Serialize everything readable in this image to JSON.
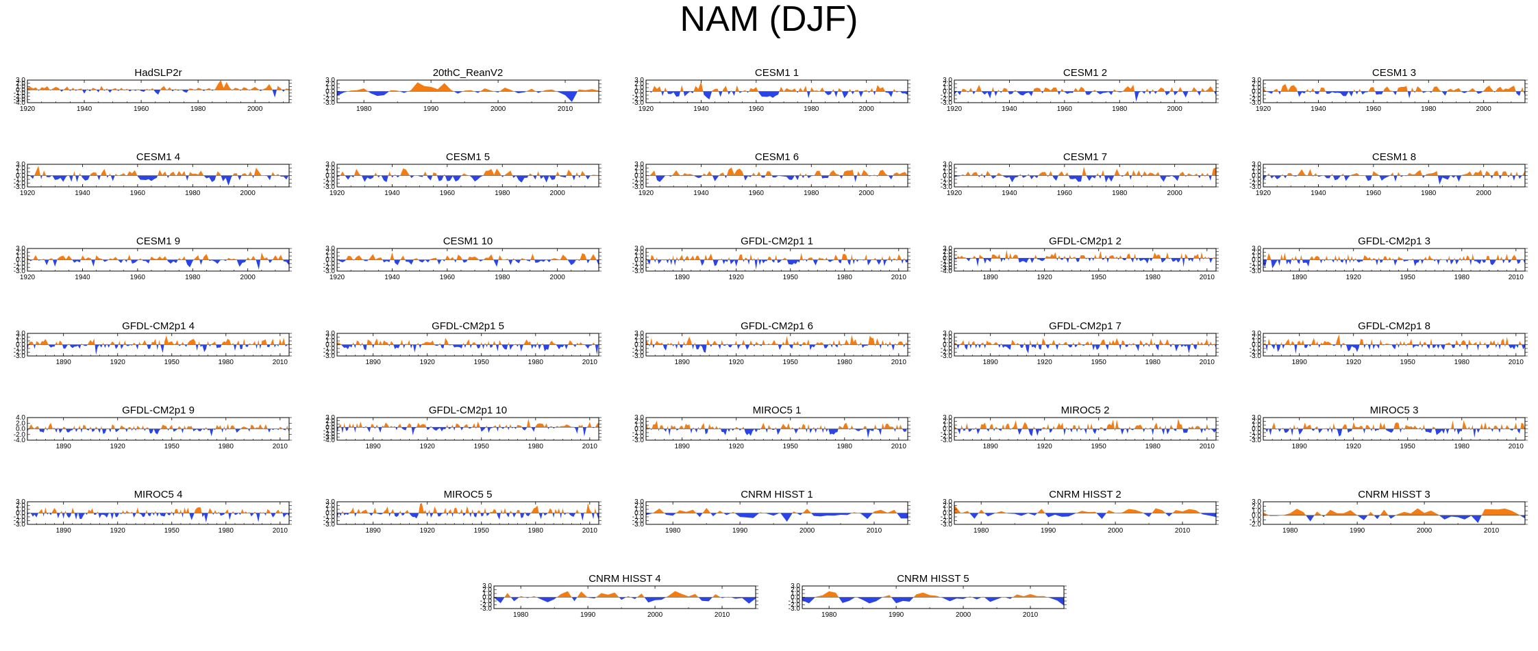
{
  "figure": {
    "title": "NAM (DJF)",
    "colors": {
      "positive": "#f47d13",
      "negative": "#2a44e8",
      "frame": "#000000",
      "zero_line": "#444444"
    }
  },
  "chart_data": [
    {
      "type": "area",
      "title": "HadSLP2r",
      "x_range": [
        1920,
        2012
      ],
      "xticks": [
        1920,
        1940,
        1960,
        1980,
        2000
      ],
      "ytick_labels": [
        "3.0",
        "2.0",
        "1.0",
        "0.0",
        "-1.0",
        "-2.0",
        "-3.0",
        "-4.0"
      ],
      "ylim": [
        -4,
        3
      ],
      "values": [
        0.6,
        0.9,
        0.4,
        0.7,
        -0.3,
        0.8,
        0.5,
        1.1,
        -0.2,
        0.4,
        0.9,
        0.5,
        -0.6,
        0.2,
        1.0,
        -0.4,
        0.6,
        -0.3,
        0.2,
        0.4,
        -1.2,
        0.3,
        -0.5,
        0.6,
        0.2,
        -0.8,
        1.2,
        -0.3,
        0.4,
        -0.9,
        0.2,
        0.5,
        -0.4,
        0.6,
        -0.2,
        0.3,
        -0.5,
        0.1,
        -0.3,
        0.2,
        -0.4,
        -0.6,
        0.3,
        -0.2,
        0.5,
        -0.8,
        -1.5,
        0.4,
        1.2,
        -0.2,
        0.8,
        -0.5,
        0.3,
        -0.3,
        0.2,
        -0.6,
        -0.9,
        0.4,
        0.3,
        -0.2,
        0.6,
        0.3,
        -0.4,
        0.2,
        0.5,
        -0.3,
        0.2,
        1.8,
        3.0,
        0.6,
        2.4,
        0.8,
        -0.2,
        0.6,
        0.4,
        -0.3,
        0.8,
        0.5,
        -0.2,
        0.4,
        0.9,
        0.3,
        -0.4,
        0.2,
        0.6,
        1.8,
        0.3,
        -2.4,
        1.2,
        0.5,
        -0.6,
        0.4,
        0.2
      ]
    },
    {
      "type": "area",
      "title": "20thC_ReanV2",
      "x_range": [
        1976,
        2015
      ],
      "xticks": [
        1980,
        1990,
        2000,
        2010
      ],
      "ytick_labels": [
        "3.0",
        "2.0",
        "1.0",
        "0.0",
        "-1.0",
        "-2.0",
        "-3.0"
      ],
      "ylim": [
        -3,
        3
      ],
      "values": [
        -1.2,
        -0.3,
        0.2,
        0.3,
        0.8,
        -0.5,
        -1.2,
        -1.0,
        0.3,
        0.2,
        -0.4,
        0.3,
        2.4,
        1.4,
        1.2,
        0.6,
        2.2,
        0.4,
        -0.6,
        0.2,
        0.3,
        -0.4,
        0.8,
        0.2,
        -0.3,
        1.0,
        0.3,
        -0.5,
        -0.2,
        0.7,
        -0.4,
        0.3,
        0.5,
        -0.2,
        -1.0,
        -2.8,
        0.5,
        0.3,
        0.6,
        0.2
      ]
    },
    {
      "type": "area",
      "title": "CESM1 1",
      "x_range": [
        1920,
        2015
      ],
      "xticks": [
        1920,
        1940,
        1960,
        1980,
        2000
      ],
      "ytick_labels": [
        "3.0",
        "2.0",
        "1.0",
        "0.0",
        "-1.0",
        "-2.0",
        "-3.0"
      ],
      "ylim": [
        -3,
        3
      ],
      "seed": 3
    },
    {
      "type": "area",
      "title": "CESM1 2",
      "x_range": [
        1920,
        2015
      ],
      "xticks": [
        1920,
        1940,
        1960,
        1980,
        2000
      ],
      "ytick_labels": [
        "3.0",
        "2.0",
        "1.0",
        "0.0",
        "-1.0",
        "-2.0",
        "-3.0"
      ],
      "ylim": [
        -3,
        3
      ],
      "seed": 4
    },
    {
      "type": "area",
      "title": "CESM1 3",
      "x_range": [
        1920,
        2015
      ],
      "xticks": [
        1920,
        1940,
        1960,
        1980,
        2000
      ],
      "ytick_labels": [
        "3.0",
        "2.0",
        "1.0",
        "0.0",
        "-1.0",
        "-2.0",
        "-3.0"
      ],
      "ylim": [
        -3,
        3
      ],
      "seed": 5
    },
    {
      "type": "area",
      "title": "CESM1 4",
      "x_range": [
        1920,
        2015
      ],
      "xticks": [
        1920,
        1940,
        1960,
        1980,
        2000
      ],
      "ytick_labels": [
        "3.0",
        "2.0",
        "1.0",
        "0.0",
        "-1.0",
        "-2.0",
        "-3.0"
      ],
      "ylim": [
        -3,
        3
      ],
      "seed": 6
    },
    {
      "type": "area",
      "title": "CESM1 5",
      "x_range": [
        1920,
        2015
      ],
      "xticks": [
        1920,
        1940,
        1960,
        1980,
        2000
      ],
      "ytick_labels": [
        "3.0",
        "2.0",
        "1.0",
        "0.0",
        "-1.0",
        "-2.0",
        "-3.0"
      ],
      "ylim": [
        -3,
        3
      ],
      "seed": 7
    },
    {
      "type": "area",
      "title": "CESM1 6",
      "x_range": [
        1920,
        2015
      ],
      "xticks": [
        1920,
        1940,
        1960,
        1980,
        2000
      ],
      "ytick_labels": [
        "3.0",
        "2.0",
        "1.0",
        "0.0",
        "-1.0",
        "-2.0",
        "-3.0"
      ],
      "ylim": [
        -3,
        3
      ],
      "seed": 8
    },
    {
      "type": "area",
      "title": "CESM1 7",
      "x_range": [
        1920,
        2015
      ],
      "xticks": [
        1920,
        1940,
        1960,
        1980,
        2000
      ],
      "ytick_labels": [
        "3.0",
        "2.0",
        "1.0",
        "0.0",
        "-1.0",
        "-2.0",
        "-3.0"
      ],
      "ylim": [
        -3,
        3
      ],
      "seed": 9
    },
    {
      "type": "area",
      "title": "CESM1 8",
      "x_range": [
        1920,
        2015
      ],
      "xticks": [
        1920,
        1940,
        1960,
        1980,
        2000
      ],
      "ytick_labels": [
        "3.0",
        "2.0",
        "1.0",
        "0.0",
        "-1.0",
        "-2.0",
        "-3.0"
      ],
      "ylim": [
        -3,
        3
      ],
      "seed": 10
    },
    {
      "type": "area",
      "title": "CESM1 9",
      "x_range": [
        1920,
        2015
      ],
      "xticks": [
        1920,
        1940,
        1960,
        1980,
        2000
      ],
      "ytick_labels": [
        "3.0",
        "2.0",
        "1.0",
        "0.0",
        "-1.0",
        "-2.0",
        "-3.0"
      ],
      "ylim": [
        -3,
        3
      ],
      "seed": 11
    },
    {
      "type": "area",
      "title": "CESM1 10",
      "x_range": [
        1920,
        2015
      ],
      "xticks": [
        1920,
        1940,
        1960,
        1980,
        2000
      ],
      "ytick_labels": [
        "3.0",
        "2.0",
        "1.0",
        "0.0",
        "-1.0",
        "-2.0",
        "-3.0"
      ],
      "ylim": [
        -3,
        3
      ],
      "seed": 12
    },
    {
      "type": "area",
      "title": "GFDL-CM2p1 1",
      "x_range": [
        1870,
        2015
      ],
      "xticks": [
        1890,
        1920,
        1950,
        1980,
        2010
      ],
      "ytick_labels": [
        "3.0",
        "2.0",
        "1.0",
        "0.0",
        "-1.0",
        "-2.0",
        "-3.0"
      ],
      "ylim": [
        -3,
        3
      ],
      "seed": 13
    },
    {
      "type": "area",
      "title": "GFDL-CM2p1 2",
      "x_range": [
        1870,
        2015
      ],
      "xticks": [
        1890,
        1920,
        1950,
        1980,
        2010
      ],
      "ytick_labels": [
        "3.0",
        "2.0",
        "1.0",
        "0.0",
        "-1.0",
        "-2.0",
        "-3.0",
        "-4.0"
      ],
      "ylim": [
        -4,
        3
      ],
      "seed": 14
    },
    {
      "type": "area",
      "title": "GFDL-CM2p1 3",
      "x_range": [
        1870,
        2015
      ],
      "xticks": [
        1890,
        1920,
        1950,
        1980,
        2010
      ],
      "ytick_labels": [
        "3.0",
        "2.0",
        "1.0",
        "0.0",
        "-1.0",
        "-2.0",
        "-3.0"
      ],
      "ylim": [
        -3,
        3
      ],
      "seed": 15
    },
    {
      "type": "area",
      "title": "GFDL-CM2p1 4",
      "x_range": [
        1870,
        2015
      ],
      "xticks": [
        1890,
        1920,
        1950,
        1980,
        2010
      ],
      "ytick_labels": [
        "3.0",
        "2.0",
        "1.0",
        "0.0",
        "-1.0",
        "-2.0",
        "-3.0"
      ],
      "ylim": [
        -3,
        3
      ],
      "seed": 16
    },
    {
      "type": "area",
      "title": "GFDL-CM2p1 5",
      "x_range": [
        1870,
        2015
      ],
      "xticks": [
        1890,
        1920,
        1950,
        1980,
        2010
      ],
      "ytick_labels": [
        "3.0",
        "2.0",
        "1.0",
        "0.0",
        "-1.0",
        "-2.0",
        "-3.0"
      ],
      "ylim": [
        -3,
        3
      ],
      "seed": 17
    },
    {
      "type": "area",
      "title": "GFDL-CM2p1 6",
      "x_range": [
        1870,
        2015
      ],
      "xticks": [
        1890,
        1920,
        1950,
        1980,
        2010
      ],
      "ytick_labels": [
        "3.0",
        "2.0",
        "1.0",
        "0.0",
        "-1.0",
        "-2.0",
        "-3.0"
      ],
      "ylim": [
        -3,
        3
      ],
      "seed": 18
    },
    {
      "type": "area",
      "title": "GFDL-CM2p1 7",
      "x_range": [
        1870,
        2015
      ],
      "xticks": [
        1890,
        1920,
        1950,
        1980,
        2010
      ],
      "ytick_labels": [
        "3.0",
        "2.0",
        "1.0",
        "0.0",
        "-1.0",
        "-2.0",
        "-3.0"
      ],
      "ylim": [
        -3,
        3
      ],
      "seed": 19
    },
    {
      "type": "area",
      "title": "GFDL-CM2p1 8",
      "x_range": [
        1870,
        2015
      ],
      "xticks": [
        1890,
        1920,
        1950,
        1980,
        2010
      ],
      "ytick_labels": [
        "3.0",
        "2.0",
        "1.0",
        "0.0",
        "-1.0",
        "-2.0",
        "-3.0"
      ],
      "ylim": [
        -3,
        3
      ],
      "seed": 20
    },
    {
      "type": "area",
      "title": "GFDL-CM2p1 9",
      "x_range": [
        1870,
        2015
      ],
      "xticks": [
        1890,
        1920,
        1950,
        1980,
        2010
      ],
      "ytick_labels": [
        "4.0",
        "2.0",
        "0.0",
        "-2.0",
        "-4.0"
      ],
      "ylim": [
        -4,
        4
      ],
      "seed": 21
    },
    {
      "type": "area",
      "title": "GFDL-CM2p1 10",
      "x_range": [
        1870,
        2015
      ],
      "xticks": [
        1890,
        1920,
        1950,
        1980,
        2010
      ],
      "ytick_labels": [
        "3.0",
        "2.0",
        "1.0",
        "0.0",
        "-1.0",
        "-2.0",
        "-3.0",
        "-4.0"
      ],
      "ylim": [
        -4,
        3
      ],
      "seed": 22
    },
    {
      "type": "area",
      "title": "MIROC5 1",
      "x_range": [
        1870,
        2015
      ],
      "xticks": [
        1890,
        1920,
        1950,
        1980,
        2010
      ],
      "ytick_labels": [
        "3.0",
        "2.0",
        "1.0",
        "0.0",
        "-1.0",
        "-2.0",
        "-3.0"
      ],
      "ylim": [
        -3,
        3
      ],
      "seed": 23
    },
    {
      "type": "area",
      "title": "MIROC5 2",
      "x_range": [
        1870,
        2015
      ],
      "xticks": [
        1890,
        1920,
        1950,
        1980,
        2010
      ],
      "ytick_labels": [
        "3.0",
        "2.0",
        "1.0",
        "0.0",
        "-1.0",
        "-2.0",
        "-3.0"
      ],
      "ylim": [
        -3,
        3
      ],
      "seed": 24
    },
    {
      "type": "area",
      "title": "MIROC5 3",
      "x_range": [
        1870,
        2015
      ],
      "xticks": [
        1890,
        1920,
        1950,
        1980,
        2010
      ],
      "ytick_labels": [
        "3.0",
        "2.0",
        "1.0",
        "0.0",
        "-1.0",
        "-2.0",
        "-3.0"
      ],
      "ylim": [
        -3,
        3
      ],
      "seed": 25
    },
    {
      "type": "area",
      "title": "MIROC5 4",
      "x_range": [
        1870,
        2015
      ],
      "xticks": [
        1890,
        1920,
        1950,
        1980,
        2010
      ],
      "ytick_labels": [
        "3.0",
        "2.0",
        "1.0",
        "0.0",
        "-1.0",
        "-2.0",
        "-3.0"
      ],
      "ylim": [
        -3,
        3
      ],
      "seed": 26
    },
    {
      "type": "area",
      "title": "MIROC5 5",
      "x_range": [
        1870,
        2015
      ],
      "xticks": [
        1890,
        1920,
        1950,
        1980,
        2010
      ],
      "ytick_labels": [
        "3.0",
        "2.0",
        "1.0",
        "0.0",
        "-1.0",
        "-2.0",
        "-3.0"
      ],
      "ylim": [
        -3,
        3
      ],
      "seed": 27
    },
    {
      "type": "area",
      "title": "CNRM HISST 1",
      "x_range": [
        1976,
        2015
      ],
      "xticks": [
        1980,
        1990,
        2000,
        2010
      ],
      "ytick_labels": [
        "3.0",
        "2.0",
        "1.0",
        "0.0",
        "-1.0",
        "-2.0",
        "-3.0"
      ],
      "ylim": [
        -3,
        3
      ],
      "seed": 28
    },
    {
      "type": "area",
      "title": "CNRM HISST 2",
      "x_range": [
        1976,
        2015
      ],
      "xticks": [
        1980,
        1990,
        2000,
        2010
      ],
      "ytick_labels": [
        "3.0",
        "2.0",
        "1.0",
        "0.0",
        "-1.0",
        "-2.0",
        "-3.0"
      ],
      "ylim": [
        -3,
        3
      ],
      "seed": 29
    },
    {
      "type": "area",
      "title": "CNRM HISST 3",
      "x_range": [
        1976,
        2015
      ],
      "xticks": [
        1980,
        1990,
        2000,
        2010
      ],
      "ytick_labels": [
        "3.0",
        "2.0",
        "1.0",
        "0.0",
        "-1.0",
        "-2.0"
      ],
      "ylim": [
        -2,
        3
      ],
      "seed": 30
    },
    {
      "type": "area",
      "title": "CNRM HISST 4",
      "x_range": [
        1976,
        2015
      ],
      "xticks": [
        1980,
        1990,
        2000,
        2010
      ],
      "ytick_labels": [
        "3.0",
        "2.0",
        "1.0",
        "0.0",
        "-1.0",
        "-2.0",
        "-3.0"
      ],
      "ylim": [
        -3,
        3
      ],
      "seed": 31
    },
    {
      "type": "area",
      "title": "CNRM HISST 5",
      "x_range": [
        1976,
        2015
      ],
      "xticks": [
        1980,
        1990,
        2000,
        2010
      ],
      "ytick_labels": [
        "3.0",
        "2.0",
        "1.0",
        "0.0",
        "-1.0",
        "-2.0",
        "-3.0"
      ],
      "ylim": [
        -3,
        3
      ],
      "seed": 32
    }
  ]
}
